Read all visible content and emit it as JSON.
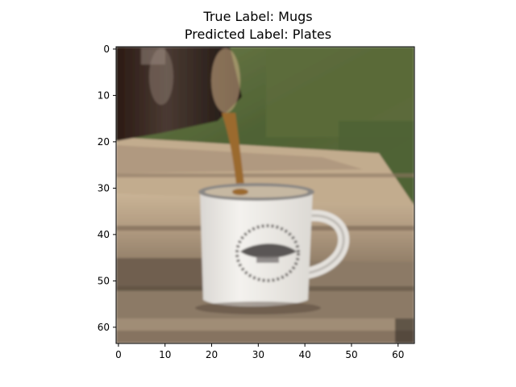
{
  "figure": {
    "title_line1": "True Label: Mugs",
    "title_line2": "Predicted Label: Plates"
  },
  "image": {
    "subject": "white enamel mug with coffee pouring into it on weathered wooden boards",
    "colors": {
      "grass": "#5b6b3a",
      "wood_light": "#c8b89c",
      "wood_dark": "#7d6a55",
      "pot": "#2a1e18",
      "coffee": "#9b6a2e",
      "mug": "#eceae6",
      "mug_shadow": "#c9c6c2",
      "emblem": "#6e6a68"
    }
  },
  "axes": {
    "x_ticks": [
      "0",
      "10",
      "20",
      "30",
      "40",
      "50",
      "60"
    ],
    "y_ticks": [
      "0",
      "10",
      "20",
      "30",
      "40",
      "50",
      "60"
    ],
    "x_values": [
      0,
      10,
      20,
      30,
      40,
      50,
      60
    ],
    "y_values": [
      0,
      10,
      20,
      30,
      40,
      50,
      60
    ],
    "xlim": [
      -0.5,
      63.5
    ],
    "ylim": [
      63.5,
      -0.5
    ]
  }
}
